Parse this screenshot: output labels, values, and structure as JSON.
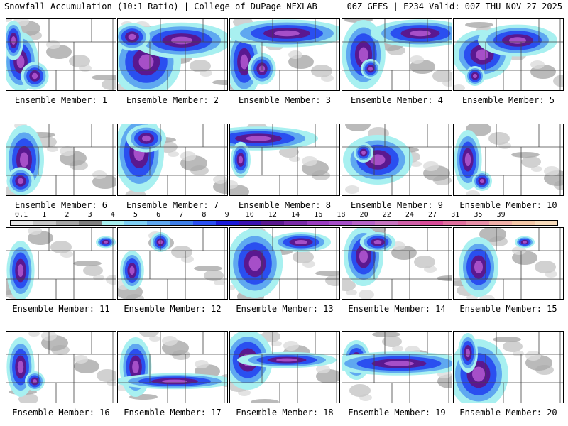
{
  "header": {
    "title": "Snowfall Accumulation (10:1 Ratio) | College of DuPage NEXLAB",
    "run": "06Z GEFS | F234 Valid: 00Z THU NOV 27 2025"
  },
  "legend": {
    "ticks": [
      "0.1",
      "1",
      "2",
      "3",
      "4",
      "5",
      "6",
      "7",
      "8",
      "9",
      "10",
      "12",
      "14",
      "16",
      "18",
      "20",
      "22",
      "24",
      "27",
      "31",
      "35",
      "39"
    ],
    "colors": [
      "#e6e6e6",
      "#c8c8c8",
      "#a6a6a6",
      "#7f7f7f",
      "#a8f0f0",
      "#7fd0f5",
      "#5fa8f0",
      "#3f7fe8",
      "#2a4ff0",
      "#1a1ad8",
      "#3a10b0",
      "#5a1890",
      "#7a2aa8",
      "#9a3cc0",
      "#a64fc8",
      "#b864c8",
      "#c875c0",
      "#d060a8",
      "#d84c98",
      "#e0709e",
      "#e890a8",
      "#f0b0a8",
      "#f4c8a8",
      "#f8dcbc"
    ]
  },
  "panels": [
    {
      "label": "Ensemble Member: 1"
    },
    {
      "label": "Ensemble Member: 2"
    },
    {
      "label": "Ensemble Member: 3"
    },
    {
      "label": "Ensemble Member: 4"
    },
    {
      "label": "Ensemble Member: 5"
    },
    {
      "label": "Ensemble Member: 6"
    },
    {
      "label": "Ensemble Member: 7"
    },
    {
      "label": "Ensemble Member: 8"
    },
    {
      "label": "Ensemble Member: 9"
    },
    {
      "label": "Ensemble Member: 10"
    },
    {
      "label": "Ensemble Member: 11"
    },
    {
      "label": "Ensemble Member: 12"
    },
    {
      "label": "Ensemble Member: 13"
    },
    {
      "label": "Ensemble Member: 14"
    },
    {
      "label": "Ensemble Member: 15"
    },
    {
      "label": "Ensemble Member: 16"
    },
    {
      "label": "Ensemble Member: 17"
    },
    {
      "label": "Ensemble Member: 18"
    },
    {
      "label": "Ensemble Member: 19"
    },
    {
      "label": "Ensemble Member: 20"
    }
  ]
}
